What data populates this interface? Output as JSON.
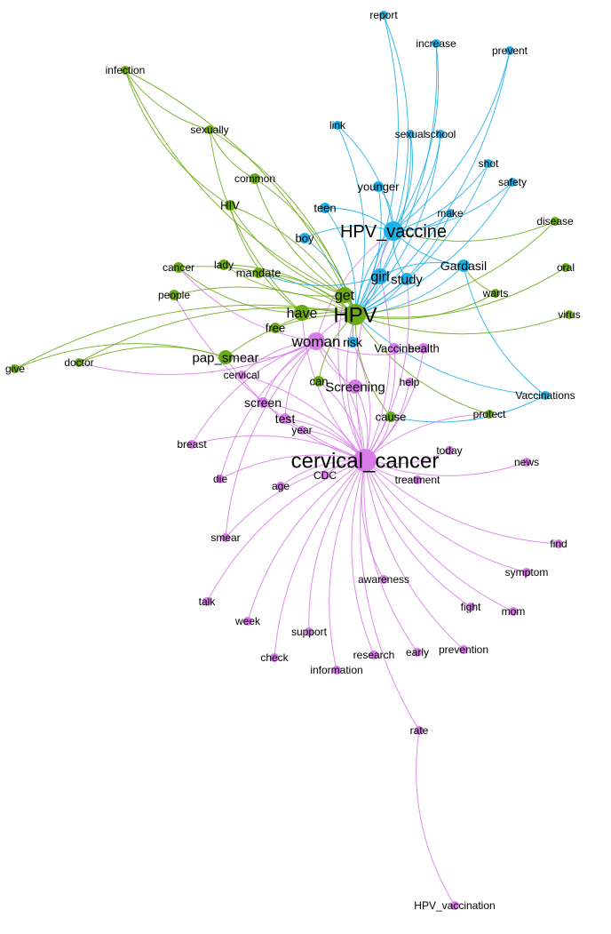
{
  "colors": {
    "blue": "#1ab0e8",
    "green": "#6aaa12",
    "purple": "#d77be8",
    "mixed": "#9aa08a"
  },
  "nodes": [
    {
      "id": "report",
      "label": "report",
      "group": "blue"
    },
    {
      "id": "increase",
      "label": "increase",
      "group": "blue"
    },
    {
      "id": "prevent",
      "label": "prevent",
      "group": "blue"
    },
    {
      "id": "link",
      "label": "link",
      "group": "blue"
    },
    {
      "id": "sexual",
      "label": "sexual",
      "group": "blue"
    },
    {
      "id": "school",
      "label": "school",
      "group": "blue"
    },
    {
      "id": "shot",
      "label": "shot",
      "group": "blue"
    },
    {
      "id": "younger",
      "label": "younger",
      "group": "blue"
    },
    {
      "id": "safety",
      "label": "safety",
      "group": "blue"
    },
    {
      "id": "teen",
      "label": "teen",
      "group": "blue"
    },
    {
      "id": "make",
      "label": "make",
      "group": "blue"
    },
    {
      "id": "hpv_vaccine",
      "label": "HPV_vaccine",
      "group": "blue"
    },
    {
      "id": "boy",
      "label": "boy",
      "group": "blue"
    },
    {
      "id": "gardasil",
      "label": "Gardasil",
      "group": "blue"
    },
    {
      "id": "girl",
      "label": "girl",
      "group": "blue"
    },
    {
      "id": "study",
      "label": "study",
      "group": "blue"
    },
    {
      "id": "risk",
      "label": "risk",
      "group": "blue"
    },
    {
      "id": "vaccinations",
      "label": "Vaccinations",
      "group": "blue"
    },
    {
      "id": "infection",
      "label": "infection",
      "group": "green"
    },
    {
      "id": "sexually",
      "label": "sexually",
      "group": "green"
    },
    {
      "id": "common",
      "label": "common",
      "group": "green"
    },
    {
      "id": "hiv",
      "label": "HIV",
      "group": "green"
    },
    {
      "id": "disease",
      "label": "disease",
      "group": "green"
    },
    {
      "id": "cancer",
      "label": "cancer",
      "group": "green"
    },
    {
      "id": "lady",
      "label": "lady",
      "group": "green"
    },
    {
      "id": "mandate",
      "label": "mandate",
      "group": "green"
    },
    {
      "id": "oral",
      "label": "oral",
      "group": "green"
    },
    {
      "id": "people",
      "label": "people",
      "group": "green"
    },
    {
      "id": "get",
      "label": "get",
      "group": "green"
    },
    {
      "id": "warts",
      "label": "warts",
      "group": "green"
    },
    {
      "id": "have",
      "label": "have",
      "group": "green"
    },
    {
      "id": "hpv",
      "label": "HPV",
      "group": "green"
    },
    {
      "id": "virus",
      "label": "virus",
      "group": "green"
    },
    {
      "id": "free",
      "label": "free",
      "group": "green"
    },
    {
      "id": "give",
      "label": "give",
      "group": "green"
    },
    {
      "id": "doctor",
      "label": "doctor",
      "group": "green"
    },
    {
      "id": "pap_smear",
      "label": "pap_smear",
      "group": "green"
    },
    {
      "id": "can",
      "label": "can",
      "group": "green"
    },
    {
      "id": "cause",
      "label": "cause",
      "group": "green"
    },
    {
      "id": "protect",
      "label": "protect",
      "group": "green"
    },
    {
      "id": "woman",
      "label": "woman",
      "group": "purple"
    },
    {
      "id": "vaccine",
      "label": "Vaccine",
      "group": "purple"
    },
    {
      "id": "health",
      "label": "health",
      "group": "purple"
    },
    {
      "id": "cervical",
      "label": "cervical",
      "group": "purple"
    },
    {
      "id": "screening",
      "label": "Screening",
      "group": "purple"
    },
    {
      "id": "help",
      "label": "help",
      "group": "purple"
    },
    {
      "id": "screen",
      "label": "screen",
      "group": "purple"
    },
    {
      "id": "test",
      "label": "test",
      "group": "purple"
    },
    {
      "id": "year",
      "label": "year",
      "group": "purple"
    },
    {
      "id": "breast",
      "label": "breast",
      "group": "purple"
    },
    {
      "id": "today",
      "label": "today",
      "group": "purple"
    },
    {
      "id": "news",
      "label": "news",
      "group": "purple"
    },
    {
      "id": "cervical_cancer",
      "label": "cervical_cancer",
      "group": "purple"
    },
    {
      "id": "die",
      "label": "die",
      "group": "purple"
    },
    {
      "id": "cdc",
      "label": "CDC",
      "group": "purple"
    },
    {
      "id": "treatment",
      "label": "treatment",
      "group": "purple"
    },
    {
      "id": "age",
      "label": "age",
      "group": "purple"
    },
    {
      "id": "find",
      "label": "find",
      "group": "purple"
    },
    {
      "id": "smear",
      "label": "smear",
      "group": "purple"
    },
    {
      "id": "symptom",
      "label": "symptom",
      "group": "purple"
    },
    {
      "id": "awareness",
      "label": "awareness",
      "group": "purple"
    },
    {
      "id": "talk",
      "label": "talk",
      "group": "purple"
    },
    {
      "id": "fight",
      "label": "fight",
      "group": "purple"
    },
    {
      "id": "mom",
      "label": "mom",
      "group": "purple"
    },
    {
      "id": "week",
      "label": "week",
      "group": "purple"
    },
    {
      "id": "support",
      "label": "support",
      "group": "purple"
    },
    {
      "id": "check",
      "label": "check",
      "group": "purple"
    },
    {
      "id": "research",
      "label": "research",
      "group": "purple"
    },
    {
      "id": "early",
      "label": "early",
      "group": "purple"
    },
    {
      "id": "prevention",
      "label": "prevention",
      "group": "purple"
    },
    {
      "id": "information",
      "label": "information",
      "group": "purple"
    },
    {
      "id": "rate",
      "label": "rate",
      "group": "purple"
    },
    {
      "id": "hpv_vaccination",
      "label": "HPV_vaccination",
      "group": "purple"
    }
  ],
  "edges": [
    [
      "hpv_vaccine",
      "report"
    ],
    [
      "hpv_vaccine",
      "increase"
    ],
    [
      "hpv_vaccine",
      "prevent"
    ],
    [
      "hpv_vaccine",
      "link"
    ],
    [
      "hpv_vaccine",
      "sexual"
    ],
    [
      "hpv_vaccine",
      "school"
    ],
    [
      "hpv_vaccine",
      "shot"
    ],
    [
      "hpv_vaccine",
      "younger"
    ],
    [
      "hpv_vaccine",
      "safety"
    ],
    [
      "hpv_vaccine",
      "teen"
    ],
    [
      "hpv_vaccine",
      "make"
    ],
    [
      "hpv_vaccine",
      "boy"
    ],
    [
      "hpv_vaccine",
      "gardasil"
    ],
    [
      "hpv_vaccine",
      "girl"
    ],
    [
      "hpv_vaccine",
      "study"
    ],
    [
      "hpv_vaccine",
      "risk"
    ],
    [
      "hpv_vaccine",
      "disease"
    ],
    [
      "hpv_vaccine",
      "cervical_cancer"
    ],
    [
      "hpv_vaccine",
      "woman"
    ],
    [
      "hpv",
      "report"
    ],
    [
      "hpv",
      "increase"
    ],
    [
      "hpv",
      "prevent"
    ],
    [
      "hpv",
      "link"
    ],
    [
      "hpv",
      "sexual"
    ],
    [
      "hpv",
      "school"
    ],
    [
      "hpv",
      "shot"
    ],
    [
      "hpv",
      "younger"
    ],
    [
      "hpv",
      "safety"
    ],
    [
      "hpv",
      "teen"
    ],
    [
      "hpv",
      "make"
    ],
    [
      "hpv",
      "boy"
    ],
    [
      "hpv",
      "gardasil"
    ],
    [
      "hpv",
      "girl"
    ],
    [
      "hpv",
      "study"
    ],
    [
      "hpv",
      "vaccinations"
    ],
    [
      "hpv",
      "infection"
    ],
    [
      "hpv",
      "sexually"
    ],
    [
      "hpv",
      "common"
    ],
    [
      "hpv",
      "hiv"
    ],
    [
      "hpv",
      "disease"
    ],
    [
      "hpv",
      "cancer"
    ],
    [
      "hpv",
      "lady"
    ],
    [
      "hpv",
      "mandate"
    ],
    [
      "hpv",
      "oral"
    ],
    [
      "hpv",
      "people"
    ],
    [
      "hpv",
      "warts"
    ],
    [
      "hpv",
      "virus"
    ],
    [
      "hpv",
      "free"
    ],
    [
      "hpv",
      "give"
    ],
    [
      "hpv",
      "doctor"
    ],
    [
      "hpv",
      "pap_smear"
    ],
    [
      "hpv",
      "can"
    ],
    [
      "hpv",
      "cause"
    ],
    [
      "hpv",
      "protect"
    ],
    [
      "hpv",
      "woman"
    ],
    [
      "hpv",
      "cervical_cancer"
    ],
    [
      "hpv",
      "have"
    ],
    [
      "hpv",
      "get"
    ],
    [
      "infection",
      "hiv"
    ],
    [
      "infection",
      "sexually"
    ],
    [
      "infection",
      "get"
    ],
    [
      "sexually",
      "common"
    ],
    [
      "sexually",
      "have"
    ],
    [
      "hiv",
      "have"
    ],
    [
      "hiv",
      "get"
    ],
    [
      "common",
      "get"
    ],
    [
      "gardasil",
      "warts"
    ],
    [
      "gardasil",
      "vaccinations"
    ],
    [
      "gardasil",
      "girl"
    ],
    [
      "pap_smear",
      "give"
    ],
    [
      "pap_smear",
      "doctor"
    ],
    [
      "pap_smear",
      "woman"
    ],
    [
      "pap_smear",
      "cervical_cancer"
    ],
    [
      "doctor",
      "woman"
    ],
    [
      "cancer",
      "have"
    ],
    [
      "cancer",
      "woman"
    ],
    [
      "people",
      "cervical_cancer"
    ],
    [
      "lady",
      "get"
    ],
    [
      "mandate",
      "girl"
    ],
    [
      "get",
      "cervical_cancer"
    ],
    [
      "have",
      "cervical_cancer"
    ],
    [
      "cause",
      "vaccinations"
    ],
    [
      "protect",
      "cervical_cancer"
    ],
    [
      "cervical_cancer",
      "woman"
    ],
    [
      "cervical_cancer",
      "vaccine"
    ],
    [
      "cervical_cancer",
      "health"
    ],
    [
      "cervical_cancer",
      "cervical"
    ],
    [
      "cervical_cancer",
      "screening"
    ],
    [
      "cervical_cancer",
      "help"
    ],
    [
      "cervical_cancer",
      "screen"
    ],
    [
      "cervical_cancer",
      "test"
    ],
    [
      "cervical_cancer",
      "year"
    ],
    [
      "cervical_cancer",
      "breast"
    ],
    [
      "cervical_cancer",
      "today"
    ],
    [
      "cervical_cancer",
      "news"
    ],
    [
      "cervical_cancer",
      "die"
    ],
    [
      "cervical_cancer",
      "cdc"
    ],
    [
      "cervical_cancer",
      "treatment"
    ],
    [
      "cervical_cancer",
      "age"
    ],
    [
      "cervical_cancer",
      "find"
    ],
    [
      "cervical_cancer",
      "smear"
    ],
    [
      "cervical_cancer",
      "symptom"
    ],
    [
      "cervical_cancer",
      "awareness"
    ],
    [
      "cervical_cancer",
      "talk"
    ],
    [
      "cervical_cancer",
      "fight"
    ],
    [
      "cervical_cancer",
      "mom"
    ],
    [
      "cervical_cancer",
      "week"
    ],
    [
      "cervical_cancer",
      "support"
    ],
    [
      "cervical_cancer",
      "check"
    ],
    [
      "cervical_cancer",
      "research"
    ],
    [
      "cervical_cancer",
      "early"
    ],
    [
      "cervical_cancer",
      "prevention"
    ],
    [
      "cervical_cancer",
      "information"
    ],
    [
      "cervical_cancer",
      "rate"
    ],
    [
      "cervical_cancer",
      "girl"
    ],
    [
      "cervical_cancer",
      "study"
    ],
    [
      "cervical_cancer",
      "risk"
    ],
    [
      "cervical_cancer",
      "can"
    ],
    [
      "cervical_cancer",
      "cause"
    ],
    [
      "rate",
      "hpv_vaccination"
    ],
    [
      "woman",
      "screening"
    ],
    [
      "woman",
      "test"
    ],
    [
      "woman",
      "screen"
    ],
    [
      "woman",
      "cervical"
    ],
    [
      "woman",
      "health"
    ],
    [
      "woman",
      "breast"
    ],
    [
      "woman",
      "die"
    ],
    [
      "woman",
      "smear"
    ]
  ]
}
